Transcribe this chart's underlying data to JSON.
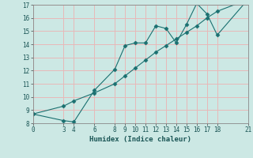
{
  "xlabel": "Humidex (Indice chaleur)",
  "background_color": "#cce8e4",
  "grid_color": "#e8b8b8",
  "line_color": "#1a7070",
  "line1_x": [
    0,
    3,
    4,
    6,
    8,
    9,
    10,
    11,
    12,
    13,
    14,
    15,
    16,
    17,
    18,
    21
  ],
  "line1_y": [
    8.7,
    8.2,
    8.1,
    10.5,
    12.1,
    13.9,
    14.1,
    14.1,
    15.4,
    15.2,
    14.1,
    15.5,
    17.1,
    16.3,
    14.7,
    17.4
  ],
  "line2_x": [
    0,
    3,
    4,
    6,
    8,
    9,
    10,
    11,
    12,
    13,
    14,
    15,
    16,
    17,
    18,
    21
  ],
  "line2_y": [
    8.7,
    9.3,
    9.7,
    10.3,
    11.0,
    11.6,
    12.2,
    12.8,
    13.4,
    13.9,
    14.4,
    14.9,
    15.4,
    16.0,
    16.5,
    17.4
  ],
  "xlim": [
    0,
    21
  ],
  "ylim": [
    8,
    17
  ],
  "xticks": [
    0,
    3,
    4,
    6,
    8,
    9,
    10,
    11,
    12,
    13,
    14,
    15,
    16,
    17,
    18,
    21
  ],
  "yticks": [
    8,
    9,
    10,
    11,
    12,
    13,
    14,
    15,
    16,
    17
  ],
  "markersize": 2.5
}
